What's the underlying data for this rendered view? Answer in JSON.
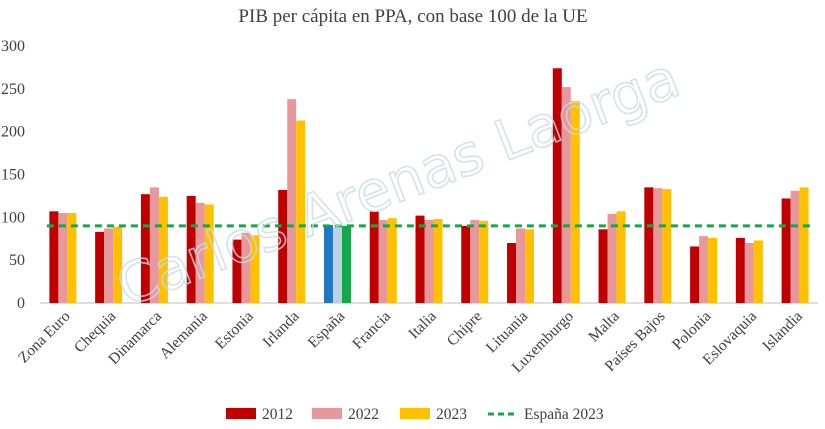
{
  "chart_data": {
    "type": "bar",
    "title": "PIB per cápita en PPA, con base 100 de la UE",
    "categories": [
      "Zona Euro",
      "Chequia",
      "Dinamarca",
      "Alemania",
      "Estonia",
      "Irlanda",
      "España",
      "Francia",
      "Italia",
      "Chipre",
      "Lituania",
      "Luxemburgo",
      "Malta",
      "Países Bajos",
      "Polonia",
      "Eslovaquia",
      "Islandia"
    ],
    "series": [
      {
        "name": "2012",
        "color": "#c00000",
        "values": [
          107,
          83,
          127,
          125,
          74,
          132,
          91,
          107,
          102,
          90,
          70,
          274,
          86,
          135,
          66,
          76,
          122
        ]
      },
      {
        "name": "2022",
        "color": "#e6989a",
        "values": [
          105,
          87,
          135,
          117,
          82,
          238,
          88,
          97,
          97,
          97,
          87,
          252,
          104,
          134,
          78,
          70,
          131
        ]
      },
      {
        "name": "2023",
        "color": "#ffc000",
        "values": [
          105,
          89,
          124,
          115,
          79,
          213,
          90,
          99,
          98,
          96,
          86,
          236,
          107,
          133,
          76,
          73,
          135
        ]
      }
    ],
    "highlight": {
      "category": "España",
      "colors": [
        "#1f78c1",
        "#bcd0e6",
        "#13a84a"
      ]
    },
    "reference_line": {
      "name": "España 2023",
      "value": 90,
      "color": "#13a84a",
      "style": "dashed"
    },
    "ylim": [
      0,
      300
    ],
    "yticks": [
      0,
      50,
      100,
      150,
      200,
      250,
      300
    ],
    "xlabel": "",
    "ylabel": "",
    "grid": false,
    "legend_position": "bottom",
    "watermark": "Carlos Arenas Laorga"
  }
}
